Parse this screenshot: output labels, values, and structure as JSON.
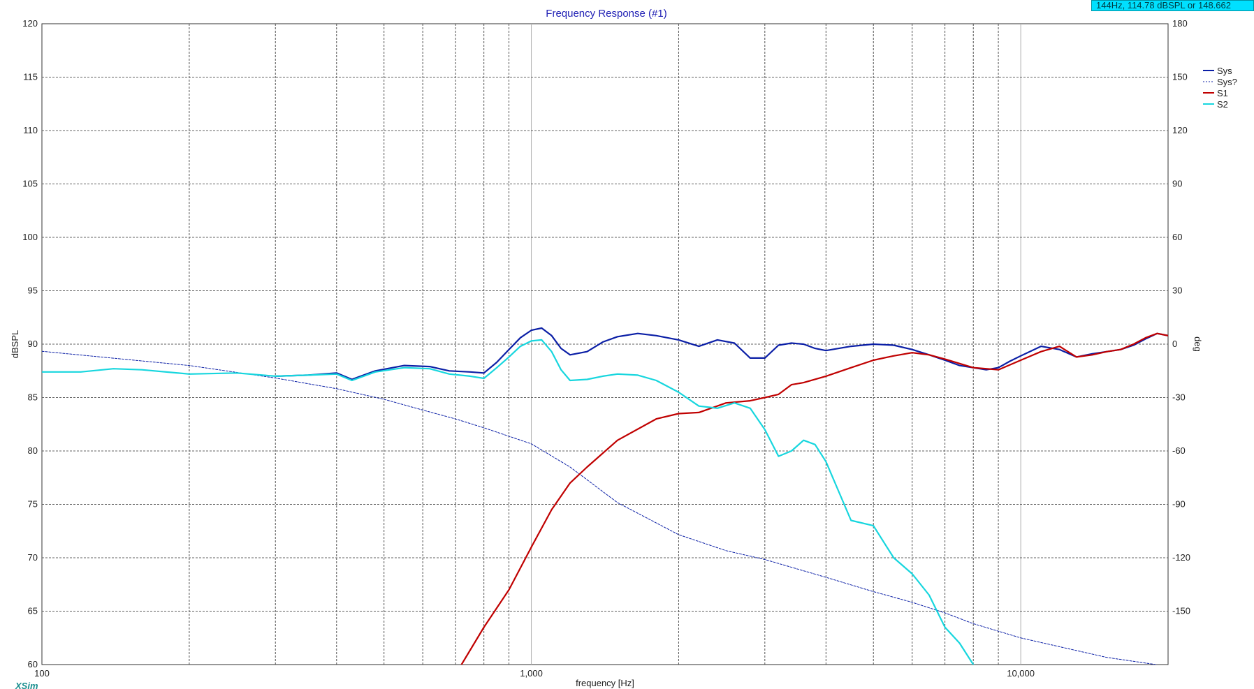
{
  "readout": "144Hz, 114.78 dBSPL or 148.662",
  "watermark": "XSim",
  "chart_data": {
    "type": "line",
    "title": "Frequency Response (#1)",
    "xlabel": "frequency [Hz]",
    "ylabel": "dBSPL",
    "y2label": "deg",
    "xscale": "log",
    "xlim": [
      100,
      20000
    ],
    "ylim": [
      60,
      120
    ],
    "y2lim": [
      -180,
      180
    ],
    "x_tick_labels": [
      {
        "value": 100,
        "label": "100"
      },
      {
        "value": 1000,
        "label": "1,000"
      },
      {
        "value": 10000,
        "label": "10,000"
      }
    ],
    "y_ticks": [
      60,
      65,
      70,
      75,
      80,
      85,
      90,
      95,
      100,
      105,
      110,
      115,
      120
    ],
    "y2_ticks": [
      -150,
      -120,
      -90,
      -60,
      -30,
      0,
      30,
      60,
      90,
      120,
      150,
      180
    ],
    "grid": true,
    "legend_position": "top-right",
    "series": [
      {
        "name": "Sys",
        "color": "#0b1fa6",
        "dash": "solid",
        "axis": "left",
        "x": [
          300,
          350,
          400,
          430,
          480,
          550,
          620,
          680,
          750,
          800,
          850,
          900,
          950,
          1000,
          1050,
          1100,
          1150,
          1200,
          1300,
          1400,
          1500,
          1650,
          1800,
          2000,
          2200,
          2400,
          2600,
          2800,
          3000,
          3200,
          3400,
          3600,
          3800,
          4000,
          4500,
          5000,
          5500,
          6000,
          6500,
          7000,
          7500,
          8000,
          8500,
          9000,
          9500,
          10000,
          11000,
          12000,
          13000,
          14000,
          15000,
          16000,
          17000,
          18000,
          19000,
          20000
        ],
        "y": [
          87.0,
          87.1,
          87.3,
          86.7,
          87.5,
          88.0,
          87.9,
          87.5,
          87.4,
          87.3,
          88.3,
          89.5,
          90.6,
          91.3,
          91.5,
          90.8,
          89.6,
          89.0,
          89.3,
          90.2,
          90.7,
          91.0,
          90.8,
          90.4,
          89.8,
          90.4,
          90.1,
          88.7,
          88.7,
          89.9,
          90.1,
          90.0,
          89.6,
          89.4,
          89.8,
          90.0,
          89.9,
          89.5,
          89.0,
          88.5,
          88.0,
          87.8,
          87.6,
          87.8,
          88.4,
          88.9,
          89.8,
          89.5,
          88.8,
          89.1,
          89.3,
          89.5,
          89.9,
          90.5,
          91.0,
          90.8
        ]
      },
      {
        "name": "Sys?",
        "color": "#0b1fa6",
        "dash": "dashed",
        "axis": "right",
        "x": [
          100,
          200,
          300,
          400,
          500,
          600,
          700,
          800,
          1000,
          1200,
          1500,
          2000,
          2500,
          3000,
          4000,
          5000,
          6000,
          7000,
          8000,
          10000,
          15000,
          20000
        ],
        "y": [
          -4,
          -12,
          -19,
          -25,
          -31,
          -37,
          -42,
          -47,
          -56,
          -69,
          -89,
          -107,
          -116,
          -121,
          -131,
          -139,
          -145,
          -151,
          -157,
          -165,
          -176,
          -181
        ]
      },
      {
        "name": "S1",
        "color": "#c00000",
        "dash": "solid",
        "axis": "left",
        "x": [
          720,
          800,
          900,
          1000,
          1100,
          1200,
          1300,
          1500,
          1800,
          2000,
          2200,
          2500,
          2800,
          3000,
          3200,
          3400,
          3600,
          4000,
          4500,
          5000,
          5500,
          6000,
          6500,
          7000,
          8000,
          9000,
          10000,
          11000,
          12000,
          13000,
          14000,
          15000,
          16000,
          17000,
          18000,
          19000,
          20000
        ],
        "y": [
          60.0,
          63.5,
          67.0,
          71.0,
          74.5,
          77.0,
          78.5,
          81.0,
          83.0,
          83.5,
          83.6,
          84.5,
          84.7,
          85.0,
          85.3,
          86.2,
          86.4,
          87.0,
          87.8,
          88.5,
          88.9,
          89.2,
          89.0,
          88.6,
          87.8,
          87.6,
          88.5,
          89.3,
          89.8,
          88.8,
          89.0,
          89.3,
          89.5,
          90.0,
          90.6,
          91.0,
          90.8
        ]
      },
      {
        "name": "S2",
        "color": "#17d6de",
        "dash": "solid",
        "axis": "left",
        "x": [
          100,
          120,
          140,
          160,
          200,
          250,
          300,
          350,
          400,
          430,
          480,
          550,
          620,
          680,
          750,
          800,
          850,
          900,
          950,
          1000,
          1050,
          1100,
          1150,
          1200,
          1300,
          1400,
          1500,
          1650,
          1800,
          2000,
          2200,
          2400,
          2600,
          2800,
          3000,
          3200,
          3400,
          3600,
          3800,
          4000,
          4500,
          5000,
          5500,
          6000,
          6500,
          7000,
          7500,
          8000
        ],
        "y": [
          87.4,
          87.4,
          87.7,
          87.6,
          87.2,
          87.3,
          87.0,
          87.1,
          87.2,
          86.6,
          87.4,
          87.8,
          87.7,
          87.2,
          87.0,
          86.8,
          87.8,
          88.8,
          89.8,
          90.3,
          90.4,
          89.3,
          87.6,
          86.6,
          86.7,
          87.0,
          87.2,
          87.1,
          86.6,
          85.5,
          84.2,
          84.0,
          84.5,
          84.0,
          82.0,
          79.5,
          80.0,
          81.0,
          80.6,
          79.0,
          73.5,
          73.0,
          70.0,
          68.5,
          66.5,
          63.5,
          62.0,
          60.0
        ]
      }
    ]
  }
}
